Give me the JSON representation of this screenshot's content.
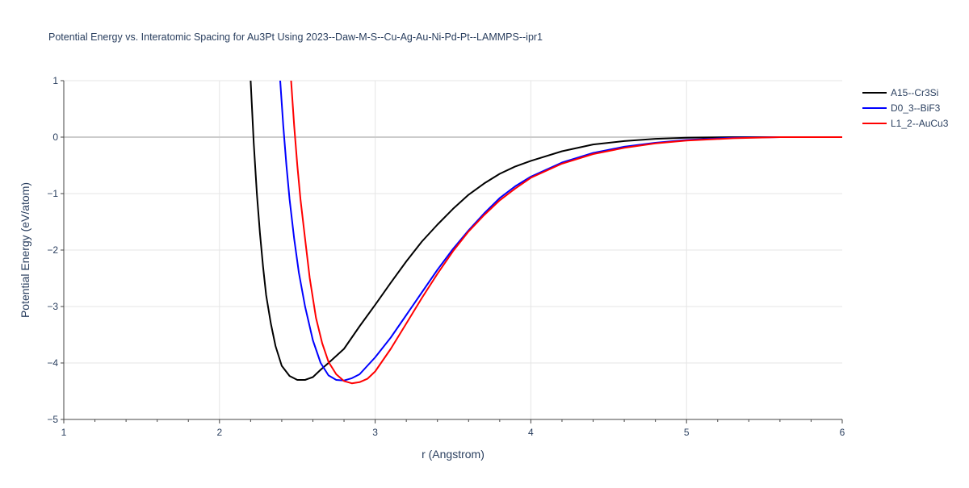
{
  "chart_data": {
    "type": "line",
    "title": "Potential Energy vs. Interatomic Spacing for Au3Pt Using 2023--Daw-M-S--Cu-Ag-Au-Ni-Pd-Pt--LAMMPS--ipr1",
    "xlabel": "r (Angstrom)",
    "ylabel": "Potential Energy (eV/atom)",
    "xlim": [
      1,
      6
    ],
    "ylim": [
      -5,
      1
    ],
    "x_ticks": [
      1,
      2,
      3,
      4,
      5,
      6
    ],
    "x_tick_labels": [
      "1",
      "2",
      "3",
      "4",
      "5",
      "6"
    ],
    "y_ticks": [
      -5,
      -4,
      -3,
      -2,
      -1,
      0,
      1
    ],
    "y_tick_labels": [
      "−5",
      "−4",
      "−3",
      "−2",
      "−1",
      "0",
      "1"
    ],
    "grid": true,
    "legend_position": "top-right",
    "series": [
      {
        "name": "A15--Cr3Si",
        "color": "#000000",
        "x": [
          2.2,
          2.22,
          2.24,
          2.26,
          2.28,
          2.3,
          2.33,
          2.36,
          2.4,
          2.45,
          2.5,
          2.55,
          2.6,
          2.65,
          2.7,
          2.8,
          2.9,
          3.0,
          3.1,
          3.2,
          3.3,
          3.4,
          3.5,
          3.6,
          3.7,
          3.8,
          3.9,
          4.0,
          4.2,
          4.4,
          4.6,
          4.8,
          5.0,
          5.3,
          5.6,
          6.0
        ],
        "y": [
          1.0,
          -0.1,
          -1.0,
          -1.7,
          -2.3,
          -2.8,
          -3.3,
          -3.7,
          -4.05,
          -4.23,
          -4.3,
          -4.3,
          -4.25,
          -4.12,
          -4.0,
          -3.75,
          -3.35,
          -2.97,
          -2.58,
          -2.2,
          -1.85,
          -1.55,
          -1.27,
          -1.02,
          -0.82,
          -0.65,
          -0.52,
          -0.42,
          -0.25,
          -0.13,
          -0.07,
          -0.03,
          -0.01,
          0.0,
          0.0,
          0.0
        ]
      },
      {
        "name": "D0_3--BiF3",
        "color": "#0000ff",
        "x": [
          2.39,
          2.41,
          2.43,
          2.45,
          2.48,
          2.51,
          2.55,
          2.6,
          2.65,
          2.7,
          2.75,
          2.8,
          2.85,
          2.9,
          3.0,
          3.1,
          3.2,
          3.3,
          3.4,
          3.5,
          3.6,
          3.7,
          3.8,
          3.9,
          4.0,
          4.2,
          4.4,
          4.6,
          4.8,
          5.0,
          5.3,
          5.6,
          6.0
        ],
        "y": [
          1.0,
          0.2,
          -0.5,
          -1.1,
          -1.8,
          -2.4,
          -3.0,
          -3.6,
          -4.0,
          -4.22,
          -4.3,
          -4.31,
          -4.27,
          -4.2,
          -3.9,
          -3.55,
          -3.15,
          -2.75,
          -2.35,
          -1.98,
          -1.65,
          -1.35,
          -1.08,
          -0.87,
          -0.7,
          -0.45,
          -0.28,
          -0.17,
          -0.1,
          -0.05,
          -0.01,
          0.0,
          0.0
        ]
      },
      {
        "name": "L1_2--AuCu3",
        "color": "#ff0000",
        "x": [
          2.46,
          2.48,
          2.5,
          2.52,
          2.55,
          2.58,
          2.62,
          2.66,
          2.7,
          2.75,
          2.8,
          2.85,
          2.9,
          2.95,
          3.0,
          3.1,
          3.2,
          3.3,
          3.4,
          3.5,
          3.6,
          3.7,
          3.8,
          3.9,
          4.0,
          4.2,
          4.4,
          4.6,
          4.8,
          5.0,
          5.3,
          5.6,
          6.0
        ],
        "y": [
          1.0,
          0.2,
          -0.5,
          -1.1,
          -1.8,
          -2.5,
          -3.2,
          -3.65,
          -3.98,
          -4.2,
          -4.32,
          -4.36,
          -4.34,
          -4.28,
          -4.15,
          -3.75,
          -3.3,
          -2.85,
          -2.42,
          -2.02,
          -1.67,
          -1.38,
          -1.12,
          -0.91,
          -0.72,
          -0.47,
          -0.3,
          -0.19,
          -0.11,
          -0.06,
          -0.02,
          0.0,
          0.0
        ]
      }
    ]
  }
}
